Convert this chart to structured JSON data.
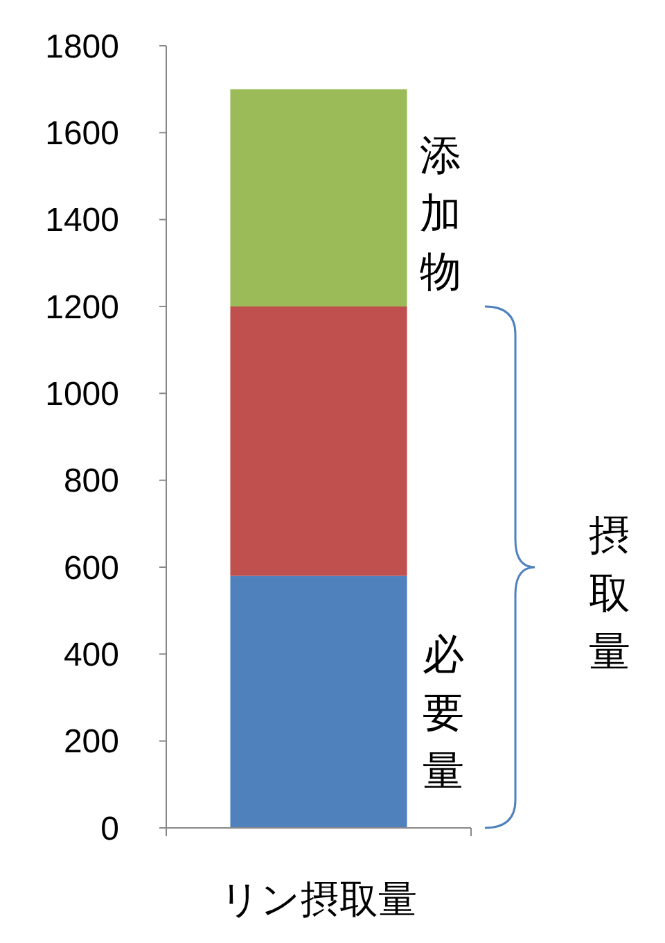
{
  "chart_data": {
    "type": "bar",
    "stacked": true,
    "categories": [
      "リン摂取量"
    ],
    "series": [
      {
        "color": "#4f81bd",
        "values": [
          580
        ]
      },
      {
        "color": "#c0504d",
        "values": [
          620
        ]
      },
      {
        "color": "#9bbb59",
        "values": [
          500
        ]
      }
    ],
    "ylim": [
      0,
      1800
    ],
    "yticks": [
      0,
      200,
      400,
      600,
      800,
      1000,
      1200,
      1400,
      1600,
      1800
    ],
    "grid": false,
    "annotations": [
      "添加物",
      "必要量",
      "摂取量"
    ]
  }
}
